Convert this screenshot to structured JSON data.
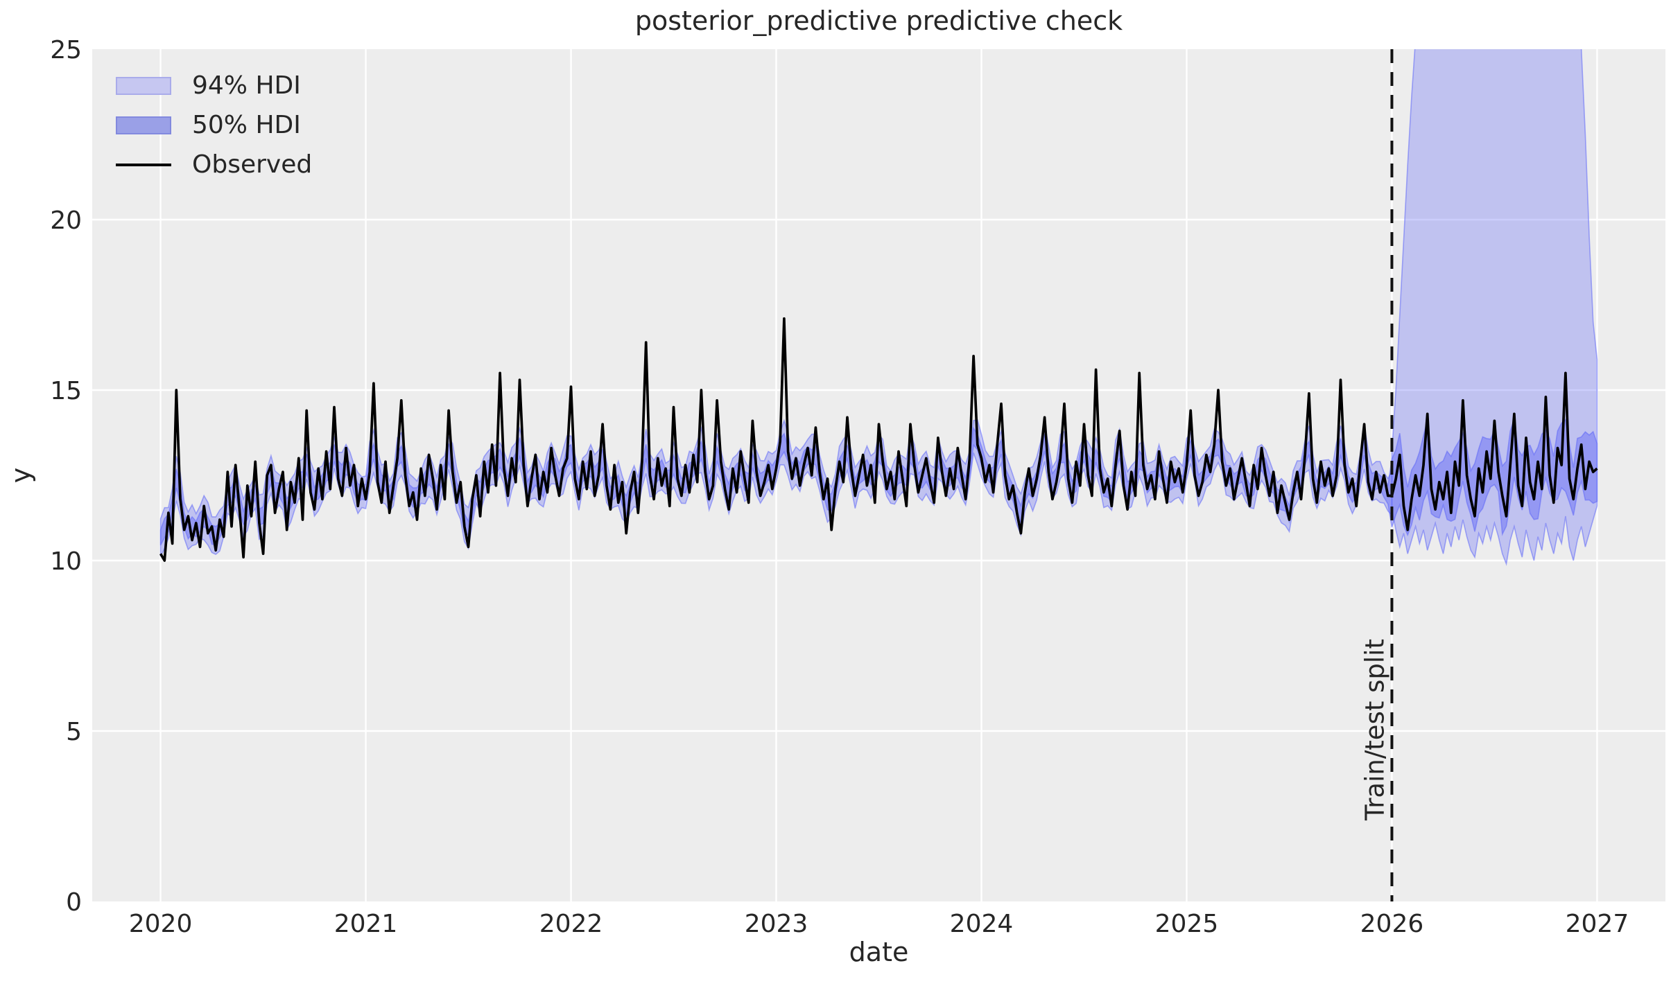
{
  "chart_data": {
    "type": "line",
    "title": "posterior_predictive predictive check",
    "xlabel": "date",
    "ylabel": "y",
    "xlim": [
      2019.667,
      2027.333
    ],
    "ylim": [
      0,
      25
    ],
    "grid": true,
    "xticks": [
      2020,
      2021,
      2022,
      2023,
      2024,
      2025,
      2026,
      2027
    ],
    "yticks": [
      0,
      5,
      10,
      15,
      20,
      25
    ],
    "legend": [
      {
        "label": "94% HDI",
        "fill": "#c6c7f1",
        "edge": "#a9abea"
      },
      {
        "label": "50% HDI",
        "fill": "#9aa0e7",
        "edge": "#8289de"
      },
      {
        "label": "Observed",
        "color": "#000000"
      }
    ],
    "split": {
      "x": 2026.0,
      "label": "Train/test split"
    },
    "colors": {
      "plot_bg": "#ededed",
      "grid": "#ffffff",
      "band_base": "#5f67f7",
      "observed": "#000000",
      "split_line": "#111111",
      "text": "#262626"
    },
    "series": {
      "name": "Observed",
      "x_start": 2020.0,
      "x_step_years": 0.0192308,
      "split_index": 312,
      "values": [
        10.2,
        10.0,
        11.4,
        10.5,
        15.0,
        11.8,
        10.9,
        11.3,
        10.6,
        11.1,
        10.4,
        11.6,
        10.8,
        11.0,
        10.3,
        11.2,
        10.7,
        12.6,
        11.0,
        12.8,
        11.5,
        10.1,
        12.2,
        11.3,
        12.9,
        11.1,
        10.2,
        12.5,
        12.8,
        11.4,
        12.1,
        12.6,
        10.9,
        12.3,
        11.7,
        13.0,
        11.2,
        14.4,
        12.0,
        11.5,
        12.7,
        11.8,
        13.2,
        12.1,
        14.5,
        12.4,
        11.9,
        13.3,
        12.2,
        12.8,
        11.6,
        12.4,
        11.8,
        12.6,
        15.2,
        12.3,
        11.7,
        12.9,
        11.4,
        12.2,
        13.0,
        14.7,
        12.5,
        11.6,
        12.0,
        11.2,
        12.7,
        11.9,
        13.1,
        12.4,
        11.5,
        12.8,
        11.8,
        14.4,
        12.6,
        11.7,
        12.3,
        11.0,
        10.4,
        11.8,
        12.5,
        11.3,
        12.9,
        12.0,
        13.4,
        12.2,
        15.5,
        12.7,
        11.9,
        13.0,
        12.3,
        15.3,
        12.8,
        11.6,
        12.4,
        13.1,
        11.8,
        12.6,
        12.0,
        13.3,
        12.5,
        11.9,
        12.7,
        13.0,
        15.1,
        12.4,
        11.8,
        12.9,
        12.1,
        13.2,
        11.9,
        12.5,
        14.0,
        12.2,
        11.5,
        12.8,
        11.7,
        12.3,
        10.8,
        12.0,
        12.6,
        11.4,
        12.9,
        16.4,
        12.5,
        11.8,
        13.0,
        12.2,
        12.7,
        11.6,
        14.5,
        12.4,
        11.9,
        12.8,
        12.0,
        13.1,
        12.3,
        15.0,
        12.6,
        11.8,
        12.2,
        14.7,
        12.9,
        12.1,
        11.5,
        12.7,
        12.0,
        13.2,
        12.4,
        11.7,
        14.1,
        12.6,
        11.9,
        12.3,
        12.8,
        12.1,
        12.7,
        13.5,
        17.1,
        13.2,
        12.4,
        13.0,
        12.2,
        12.8,
        13.3,
        12.5,
        13.9,
        12.6,
        11.8,
        12.4,
        10.9,
        12.1,
        12.9,
        12.3,
        14.2,
        12.7,
        11.9,
        12.5,
        13.1,
        12.2,
        12.8,
        11.7,
        14.0,
        12.9,
        12.1,
        12.6,
        11.8,
        13.2,
        12.4,
        11.6,
        14.0,
        12.8,
        12.0,
        12.5,
        13.0,
        12.3,
        11.7,
        13.6,
        12.6,
        11.9,
        12.7,
        12.1,
        13.3,
        12.5,
        11.8,
        13.0,
        16.0,
        13.4,
        13.0,
        12.3,
        12.8,
        12.0,
        13.4,
        14.6,
        12.5,
        11.8,
        12.2,
        11.4,
        10.8,
        12.0,
        12.7,
        11.9,
        12.4,
        13.1,
        14.2,
        12.6,
        11.8,
        12.3,
        13.0,
        14.6,
        12.4,
        11.7,
        12.9,
        12.2,
        14.0,
        12.5,
        11.9,
        15.6,
        12.7,
        12.0,
        12.4,
        11.6,
        12.8,
        13.8,
        12.2,
        11.5,
        12.6,
        11.9,
        15.5,
        12.8,
        12.1,
        12.5,
        11.8,
        13.2,
        12.4,
        11.7,
        12.9,
        12.3,
        12.7,
        12.0,
        12.8,
        14.4,
        12.5,
        11.9,
        12.3,
        13.1,
        12.6,
        13.4,
        15.0,
        12.9,
        12.2,
        12.7,
        11.8,
        12.4,
        13.0,
        12.3,
        11.6,
        12.8,
        12.1,
        13.3,
        12.5,
        11.9,
        12.6,
        11.4,
        12.2,
        11.7,
        11.2,
        12.0,
        12.6,
        11.8,
        13.1,
        14.9,
        12.4,
        11.7,
        12.9,
        12.2,
        12.7,
        11.9,
        12.5,
        15.3,
        12.8,
        12.0,
        12.4,
        11.6,
        12.9,
        14.0,
        12.3,
        11.8,
        12.6,
        12.0,
        12.5,
        11.9,
        11.9,
        12.4,
        13.1,
        11.6,
        10.9,
        11.8,
        12.5,
        11.9,
        12.8,
        14.3,
        12.1,
        11.5,
        12.3,
        11.8,
        12.6,
        11.4,
        12.9,
        12.2,
        14.7,
        12.5,
        11.8,
        11.3,
        12.7,
        12.0,
        13.2,
        12.4,
        14.1,
        12.6,
        11.9,
        11.3,
        12.8,
        14.3,
        12.2,
        11.6,
        13.6,
        12.3,
        11.8,
        12.9,
        12.1,
        14.8,
        12.5,
        11.7,
        13.3,
        12.8,
        15.5,
        12.4,
        11.8,
        12.7,
        13.4,
        12.1,
        12.9,
        12.6,
        12.7
      ]
    },
    "forecast94": {
      "note": "94% HDI envelope after train/test split, one value per week of 2026",
      "upper": [
        13.2,
        15.0,
        17.2,
        19.4,
        21.6,
        23.6,
        25.3,
        26.6,
        27.5,
        27.5,
        27.5,
        27.5,
        27.5,
        27.5,
        27.5,
        27.5,
        27.5,
        27.5,
        27.5,
        27.5,
        27.5,
        27.5,
        27.5,
        27.5,
        27.5,
        27.5,
        27.5,
        27.5,
        27.5,
        27.5,
        27.5,
        27.5,
        27.5,
        27.5,
        27.5,
        27.5,
        27.5,
        27.5,
        27.5,
        27.5,
        27.5,
        27.5,
        27.5,
        27.5,
        27.5,
        27.5,
        27.0,
        26.2,
        25.0,
        22.5,
        19.5,
        17.0,
        15.9
      ],
      "lower": [
        11.5,
        10.9,
        10.4,
        10.8,
        10.2,
        10.6,
        11.0,
        10.5,
        10.9,
        10.3,
        10.7,
        11.1,
        10.6,
        10.2,
        10.8,
        10.4,
        11.0,
        10.6,
        11.2,
        10.7,
        10.3,
        10.1,
        10.8,
        10.5,
        11.0,
        10.6,
        11.1,
        10.7,
        10.2,
        9.9,
        10.6,
        11.0,
        10.5,
        10.1,
        10.9,
        10.4,
        10.0,
        10.7,
        10.3,
        11.1,
        10.6,
        10.2,
        10.8,
        10.5,
        11.3,
        10.4,
        10.0,
        10.6,
        11.0,
        10.4,
        10.8,
        11.2,
        11.6
      ]
    },
    "band_params": {
      "jit9": [
        0.5,
        -0.8,
        1.0,
        -0.3,
        0.7,
        -1.0,
        0.2,
        0.9,
        -0.6
      ],
      "jit7": [
        0.6,
        -0.9,
        0.3,
        0.8,
        -0.5,
        1.0,
        -0.2
      ],
      "center_clip": [
        10.6,
        13.8
      ],
      "offset_amp": 0.15,
      "d94_base": 0.4,
      "d94_amp": 0.25,
      "d50_base": 0.17,
      "d50_amp": 0.11,
      "d50_out_base": 0.55,
      "d50_out_amp": 0.5,
      "band94_alpha": 0.32,
      "band50_alpha": 0.45,
      "edge_alpha": 0.55
    }
  }
}
